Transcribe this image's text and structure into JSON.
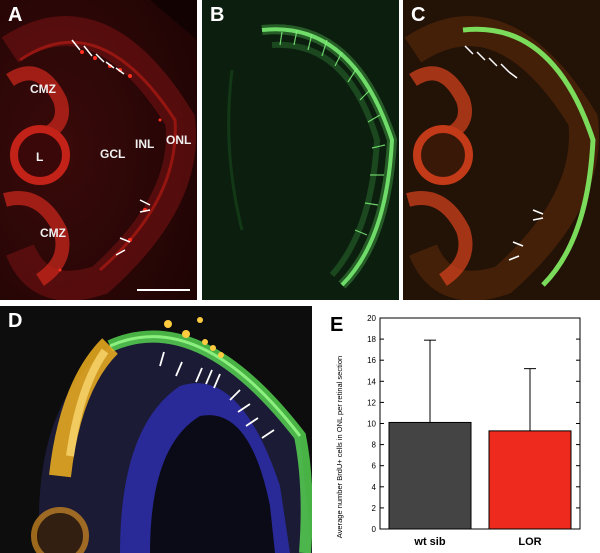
{
  "panels": {
    "A": {
      "label": "A",
      "tissue_labels": {
        "cmz_top": "CMZ",
        "lens": "L",
        "gcl": "GCL",
        "inl": "INL",
        "onl": "ONL",
        "cmz_bottom": "CMZ"
      }
    },
    "B": {
      "label": "B"
    },
    "C": {
      "label": "C"
    },
    "D": {
      "label": "D"
    },
    "E": {
      "label": "E"
    }
  },
  "colors": {
    "dark_background": "#2a0808",
    "red_stain": "#e02418",
    "green_stain": "#5fcf5a",
    "blue_stain": "#3a3fd0",
    "bar_wt_sib": "#444444",
    "bar_lor": "#ee2a1e"
  },
  "chart_data": {
    "type": "bar",
    "categories": [
      "wt sib",
      "LOR"
    ],
    "values": [
      10.1,
      9.3
    ],
    "error_upper": [
      17.9,
      15.2
    ],
    "ylabel": "Average number BrdU+ cells in ONL per retinal section",
    "ylim": [
      0,
      20
    ],
    "yticks": [
      0,
      2,
      4,
      6,
      8,
      10,
      12,
      14,
      16,
      18,
      20
    ],
    "grid": false
  }
}
